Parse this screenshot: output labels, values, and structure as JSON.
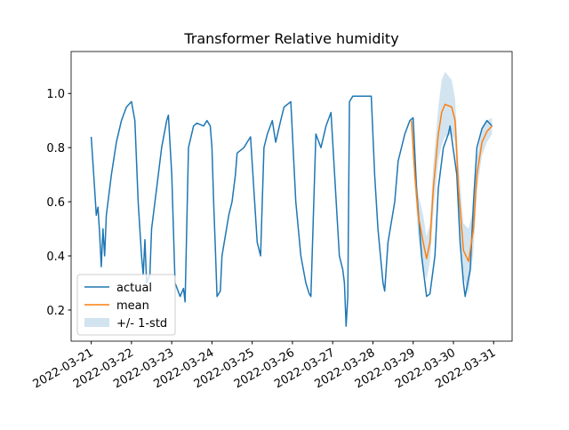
{
  "chart_data": {
    "type": "line",
    "title": "Transformer Relative humidity",
    "xlim": [
      "2022-03-20T12:00",
      "2022-03-31T11:00"
    ],
    "ylim": [
      0.085,
      1.155
    ],
    "xticks": [
      "2022-03-21",
      "2022-03-22",
      "2022-03-23",
      "2022-03-24",
      "2022-03-25",
      "2022-03-26",
      "2022-03-27",
      "2022-03-28",
      "2022-03-29",
      "2022-03-30",
      "2022-03-31"
    ],
    "yticks": [
      0.2,
      0.4,
      0.6,
      0.8,
      {
        "value": 1,
        "label": "1.0"
      }
    ],
    "legend": "lower left",
    "series": [
      {
        "name": "actual",
        "color": "#1f77b4",
        "x": [
          "2022-03-21T00:00",
          "2022-03-21T02:00",
          "2022-03-21T03:00",
          "2022-03-21T04:00",
          "2022-03-21T05:00",
          "2022-03-21T06:00",
          "2022-03-21T07:00",
          "2022-03-21T08:00",
          "2022-03-21T09:00",
          "2022-03-21T12:00",
          "2022-03-21T15:00",
          "2022-03-21T18:00",
          "2022-03-21T21:00",
          "2022-03-22T00:00",
          "2022-03-22T02:00",
          "2022-03-22T04:00",
          "2022-03-22T06:00",
          "2022-03-22T07:00",
          "2022-03-22T08:00",
          "2022-03-22T09:00",
          "2022-03-22T11:00",
          "2022-03-22T12:00",
          "2022-03-22T15:00",
          "2022-03-22T18:00",
          "2022-03-22T21:00",
          "2022-03-22T22:00",
          "2022-03-23T00:00",
          "2022-03-23T02:00",
          "2022-03-23T05:00",
          "2022-03-23T07:00",
          "2022-03-23T08:00",
          "2022-03-23T10:00",
          "2022-03-23T13:00",
          "2022-03-23T15:00",
          "2022-03-23T19:00",
          "2022-03-23T21:00",
          "2022-03-23T23:00",
          "2022-03-24T00:00",
          "2022-03-24T01:00",
          "2022-03-24T02:00",
          "2022-03-24T03:00",
          "2022-03-24T05:00",
          "2022-03-24T06:00",
          "2022-03-24T10:00",
          "2022-03-24T12:00",
          "2022-03-24T14:00",
          "2022-03-24T15:00",
          "2022-03-24T19:00",
          "2022-03-24T21:00",
          "2022-03-24T23:00",
          "2022-03-25T03:00",
          "2022-03-25T05:00",
          "2022-03-25T07:00",
          "2022-03-25T09:00",
          "2022-03-25T12:00",
          "2022-03-25T14:00",
          "2022-03-25T17:00",
          "2022-03-25T19:00",
          "2022-03-25T23:00",
          "2022-03-26T02:00",
          "2022-03-26T05:00",
          "2022-03-26T08:00",
          "2022-03-26T10:00",
          "2022-03-26T11:00",
          "2022-03-26T14:00",
          "2022-03-26T17:00",
          "2022-03-26T20:00",
          "2022-03-26T23:00",
          "2022-03-27T04:00",
          "2022-03-27T06:00",
          "2022-03-27T07:00",
          "2022-03-27T08:00",
          "2022-03-27T09:00",
          "2022-03-27T10:00",
          "2022-03-27T12:00",
          "2022-03-27T23:00",
          "2022-03-28T01:00",
          "2022-03-28T03:00",
          "2022-03-28T06:00",
          "2022-03-28T07:00",
          "2022-03-28T09:00",
          "2022-03-28T13:00",
          "2022-03-28T15:00",
          "2022-03-28T19:00",
          "2022-03-28T22:00",
          "2022-03-29T00:00",
          "2022-03-29T02:00",
          "2022-03-29T05:00",
          "2022-03-29T08:00",
          "2022-03-29T10:00",
          "2022-03-29T13:00",
          "2022-03-29T15:00",
          "2022-03-29T18:00",
          "2022-03-29T21:00",
          "2022-03-29T22:00",
          "2022-03-30T02:00",
          "2022-03-30T04:00",
          "2022-03-30T06:00",
          "2022-03-30T07:00",
          "2022-03-30T10:00",
          "2022-03-30T12:00",
          "2022-03-30T14:00",
          "2022-03-30T17:00",
          "2022-03-30T20:00",
          "2022-03-30T23:00"
        ],
        "values": [
          0.84,
          0.65,
          0.55,
          0.58,
          0.48,
          0.36,
          0.5,
          0.4,
          0.55,
          0.7,
          0.82,
          0.9,
          0.95,
          0.97,
          0.9,
          0.6,
          0.4,
          0.33,
          0.46,
          0.3,
          0.33,
          0.5,
          0.65,
          0.8,
          0.9,
          0.92,
          0.7,
          0.3,
          0.25,
          0.28,
          0.23,
          0.8,
          0.88,
          0.89,
          0.88,
          0.9,
          0.88,
          0.8,
          0.6,
          0.43,
          0.25,
          0.27,
          0.4,
          0.55,
          0.6,
          0.7,
          0.78,
          0.8,
          0.82,
          0.84,
          0.45,
          0.4,
          0.8,
          0.85,
          0.9,
          0.82,
          0.9,
          0.95,
          0.97,
          0.6,
          0.4,
          0.3,
          0.26,
          0.25,
          0.85,
          0.8,
          0.88,
          0.93,
          0.4,
          0.35,
          0.3,
          0.14,
          0.25,
          0.97,
          0.99,
          0.99,
          0.7,
          0.5,
          0.3,
          0.27,
          0.45,
          0.6,
          0.75,
          0.85,
          0.9,
          0.91,
          0.65,
          0.4,
          0.25,
          0.26,
          0.4,
          0.65,
          0.8,
          0.85,
          0.88,
          0.7,
          0.45,
          0.3,
          0.25,
          0.35,
          0.6,
          0.8,
          0.87,
          0.9,
          0.88
        ]
      },
      {
        "name": "mean",
        "color": "#ff7f0e",
        "std_name": "+/- 1-std",
        "std_color": "#1f77b4",
        "x": [
          "2022-03-28T23:00",
          "2022-03-29T01:00",
          "2022-03-29T03:00",
          "2022-03-29T06:00",
          "2022-03-29T08:00",
          "2022-03-29T10:00",
          "2022-03-29T12:00",
          "2022-03-29T15:00",
          "2022-03-29T17:00",
          "2022-03-29T19:00",
          "2022-03-29T23:00",
          "2022-03-30T01:00",
          "2022-03-30T03:00",
          "2022-03-30T06:00",
          "2022-03-30T09:00",
          "2022-03-30T12:00",
          "2022-03-30T14:00",
          "2022-03-30T17:00",
          "2022-03-30T20:00",
          "2022-03-30T23:00"
        ],
        "values": [
          0.9,
          0.7,
          0.55,
          0.45,
          0.39,
          0.45,
          0.65,
          0.85,
          0.93,
          0.96,
          0.95,
          0.9,
          0.65,
          0.42,
          0.38,
          0.5,
          0.7,
          0.82,
          0.86,
          0.88
        ],
        "std": [
          0.03,
          0.05,
          0.08,
          0.1,
          0.08,
          0.07,
          0.09,
          0.1,
          0.12,
          0.12,
          0.1,
          0.08,
          0.09,
          0.1,
          0.12,
          0.08,
          0.06,
          0.05,
          0.04,
          0.03
        ]
      }
    ]
  }
}
